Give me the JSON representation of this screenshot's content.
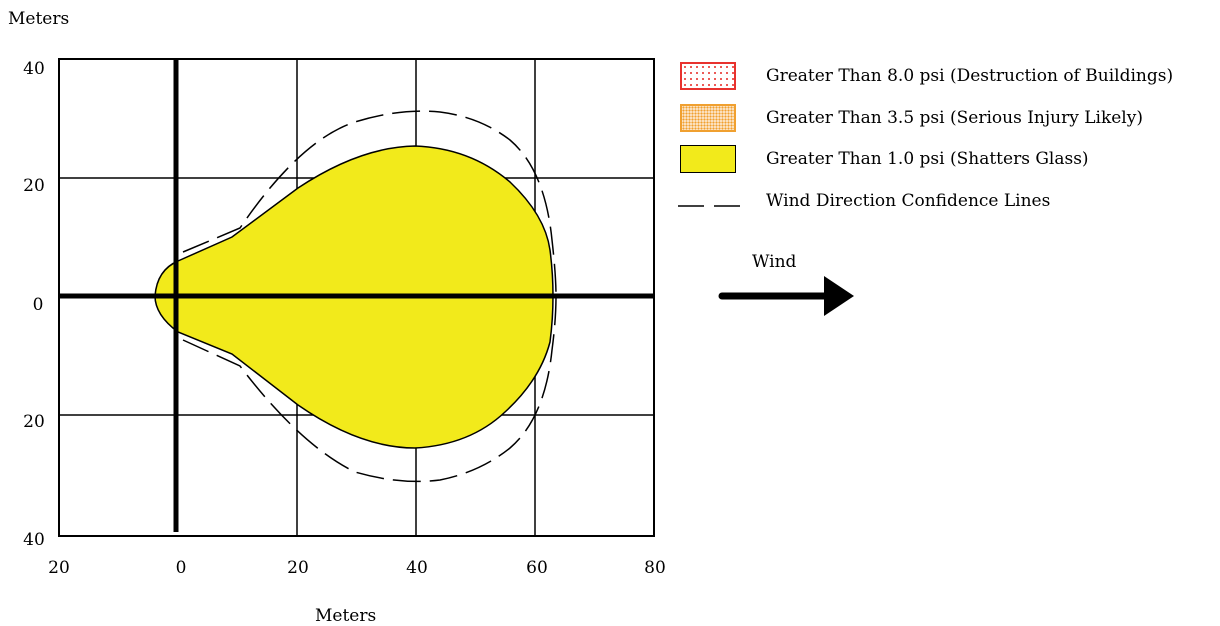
{
  "yaxis": {
    "label": "Meters",
    "ticks": [
      "40",
      "20",
      "0",
      "20",
      "40"
    ]
  },
  "xaxis": {
    "label": "Meters",
    "ticks": [
      "20",
      "0",
      "20",
      "40",
      "60",
      "80"
    ]
  },
  "legend": [
    {
      "label": "Greater Than 8.0 psi (Destruction of Buildings)",
      "color": "#e8322e",
      "pattern": "dotted"
    },
    {
      "label": "Greater Than 3.5 psi (Serious Injury Likely)",
      "color": "#f0a030",
      "pattern": "stippled"
    },
    {
      "label": "Greater Than 1.0 psi (Shatters Glass)",
      "color": "#f2ea1b",
      "pattern": "solid"
    },
    {
      "label": "Wind Direction Confidence Lines",
      "color": "#000000",
      "pattern": "dashed"
    }
  ],
  "wind": {
    "label": "Wind",
    "direction": "right",
    "icon": "arrow-right-icon"
  },
  "plume": {
    "fill_color": "#f2ea1b",
    "edge_color": "#000000"
  }
}
